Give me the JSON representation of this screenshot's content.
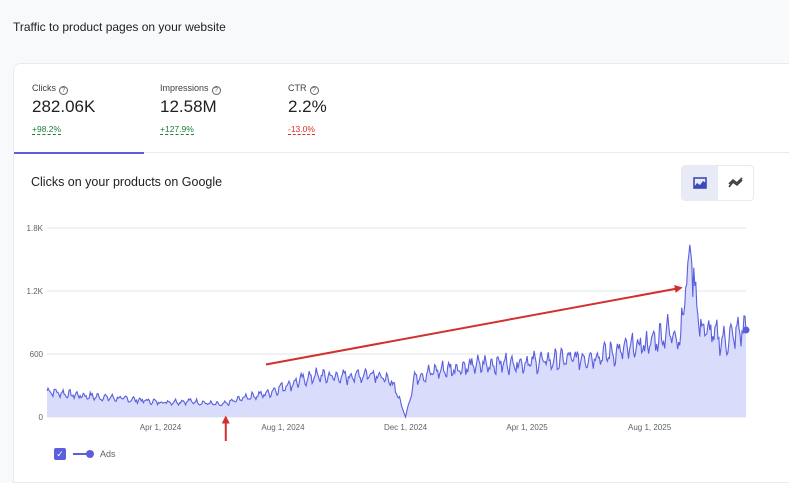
{
  "page": {
    "title": "Traffic to product pages on your website"
  },
  "metrics": [
    {
      "label": "Clicks",
      "value": "282.06K",
      "delta": "+98.2%",
      "trend": "up"
    },
    {
      "label": "Impressions",
      "value": "12.58M",
      "delta": "+127.9%",
      "trend": "up"
    },
    {
      "label": "CTR",
      "value": "2.2%",
      "delta": "-13.0%",
      "trend": "down"
    }
  ],
  "chart": {
    "title": "Clicks on your products on Google",
    "toggle": {
      "area_icon": "area-chart-icon",
      "line_icon": "trend-line-icon",
      "selected": "area"
    },
    "legend": {
      "label": "Ads"
    }
  },
  "chart_data": {
    "type": "area",
    "title": "Clicks on your products on Google",
    "y_ticks": [
      0,
      600,
      1200,
      1800
    ],
    "y_tick_labels": [
      "0",
      "600",
      "1.2K",
      "1.8K"
    ],
    "ylim": [
      0,
      1800
    ],
    "x_range": [
      "2023-12-10",
      "2025-11-05"
    ],
    "x_ticks": [
      "2024-04-01",
      "2024-08-01",
      "2024-12-01",
      "2025-04-01",
      "2025-08-01"
    ],
    "x_tick_labels": [
      "Apr 1, 2024",
      "Aug 1, 2024",
      "Dec 1, 2024",
      "Apr 1, 2025",
      "Aug 1, 2025"
    ],
    "grid": true,
    "legend_position": "bottom-left",
    "series": [
      {
        "name": "Ads",
        "color": "#5b5fde",
        "fill": "#d9dcfb",
        "points": [
          [
            "2023-12-10",
            250
          ],
          [
            "2024-01-01",
            215
          ],
          [
            "2024-02-01",
            190
          ],
          [
            "2024-03-01",
            170
          ],
          [
            "2024-04-01",
            140
          ],
          [
            "2024-05-01",
            150
          ],
          [
            "2024-06-01",
            115
          ],
          [
            "2024-06-25",
            190
          ],
          [
            "2024-07-15",
            220
          ],
          [
            "2024-08-01",
            290
          ],
          [
            "2024-09-01",
            390
          ],
          [
            "2024-10-01",
            380
          ],
          [
            "2024-11-01",
            420
          ],
          [
            "2024-11-20",
            300
          ],
          [
            "2024-12-01",
            0
          ],
          [
            "2024-12-10",
            380
          ],
          [
            "2025-01-01",
            440
          ],
          [
            "2025-02-01",
            480
          ],
          [
            "2025-03-01",
            510
          ],
          [
            "2025-04-01",
            520
          ],
          [
            "2025-05-01",
            540
          ],
          [
            "2025-06-01",
            570
          ],
          [
            "2025-07-01",
            620
          ],
          [
            "2025-08-01",
            700
          ],
          [
            "2025-08-20",
            820
          ],
          [
            "2025-09-01",
            760
          ],
          [
            "2025-09-10",
            1640
          ],
          [
            "2025-09-20",
            860
          ],
          [
            "2025-10-15",
            720
          ],
          [
            "2025-11-05",
            860
          ]
        ]
      }
    ]
  },
  "annotations": [
    {
      "type": "arrow",
      "color": "#d32f2f",
      "from": [
        "2024-07-15",
        500
      ],
      "to": [
        "2025-09-01",
        1230
      ]
    },
    {
      "type": "arrow",
      "color": "#d32f2f",
      "from": [
        "2024-06-05",
        -450
      ],
      "to": [
        "2024-06-05",
        -5
      ]
    }
  ],
  "colors": {
    "accent": "#5b5fde",
    "positive": "#188038",
    "negative": "#d93025",
    "annotation": "#d32f2f"
  }
}
